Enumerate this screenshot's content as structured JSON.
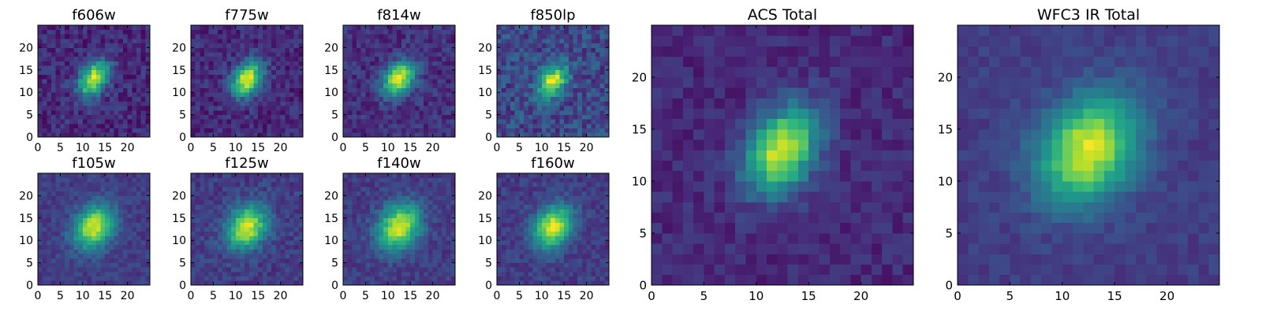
{
  "chart_data": [
    {
      "type": "heatmap",
      "title": "f606w",
      "grid": [
        25,
        25
      ],
      "xlim": [
        0,
        25
      ],
      "ylim": [
        0,
        25
      ],
      "xticks": [
        0,
        5,
        10,
        15,
        20
      ],
      "yticks": [
        0,
        5,
        10,
        15,
        20
      ],
      "source": {
        "center": [
          12,
          12.5
        ],
        "sigma_major": 3.0,
        "sigma_minor": 2.0,
        "angle_deg": 55,
        "peak": 1.0,
        "noise": 0.3,
        "background": 0.12
      }
    },
    {
      "type": "heatmap",
      "title": "f775w",
      "grid": [
        25,
        25
      ],
      "xlim": [
        0,
        25
      ],
      "ylim": [
        0,
        25
      ],
      "xticks": [
        0,
        5,
        10,
        15,
        20
      ],
      "yticks": [
        0,
        5,
        10,
        15,
        20
      ],
      "source": {
        "center": [
          12,
          12.5
        ],
        "sigma_major": 3.0,
        "sigma_minor": 2.1,
        "angle_deg": 55,
        "peak": 1.0,
        "noise": 0.28,
        "background": 0.12
      }
    },
    {
      "type": "heatmap",
      "title": "f814w",
      "grid": [
        25,
        25
      ],
      "xlim": [
        0,
        25
      ],
      "ylim": [
        0,
        25
      ],
      "xticks": [
        0,
        5,
        10,
        15,
        20
      ],
      "yticks": [
        0,
        5,
        10,
        15,
        20
      ],
      "source": {
        "center": [
          12,
          12.5
        ],
        "sigma_major": 3.0,
        "sigma_minor": 2.1,
        "angle_deg": 55,
        "peak": 1.0,
        "noise": 0.28,
        "background": 0.14
      }
    },
    {
      "type": "heatmap",
      "title": "f850lp",
      "grid": [
        25,
        25
      ],
      "xlim": [
        0,
        25
      ],
      "ylim": [
        0,
        25
      ],
      "xticks": [
        0,
        5,
        10,
        15,
        20
      ],
      "yticks": [
        0,
        5,
        10,
        15,
        20
      ],
      "source": {
        "center": [
          12,
          12
        ],
        "sigma_major": 2.8,
        "sigma_minor": 1.9,
        "angle_deg": 55,
        "peak": 1.0,
        "noise": 0.38,
        "background": 0.22
      }
    },
    {
      "type": "heatmap",
      "title": "f105w",
      "grid": [
        25,
        25
      ],
      "xlim": [
        0,
        25
      ],
      "ylim": [
        0,
        25
      ],
      "xticks": [
        0,
        5,
        10,
        15,
        20
      ],
      "yticks": [
        0,
        5,
        10,
        15,
        20
      ],
      "source": {
        "center": [
          12,
          12.5
        ],
        "sigma_major": 3.6,
        "sigma_minor": 2.8,
        "angle_deg": 55,
        "peak": 1.0,
        "noise": 0.2,
        "background": 0.18
      }
    },
    {
      "type": "heatmap",
      "title": "f125w",
      "grid": [
        25,
        25
      ],
      "xlim": [
        0,
        25
      ],
      "ylim": [
        0,
        25
      ],
      "xticks": [
        0,
        5,
        10,
        15,
        20
      ],
      "yticks": [
        0,
        5,
        10,
        15,
        20
      ],
      "source": {
        "center": [
          12,
          12.5
        ],
        "sigma_major": 3.6,
        "sigma_minor": 2.8,
        "angle_deg": 55,
        "peak": 1.0,
        "noise": 0.24,
        "background": 0.18
      }
    },
    {
      "type": "heatmap",
      "title": "f140w",
      "grid": [
        25,
        25
      ],
      "xlim": [
        0,
        25
      ],
      "ylim": [
        0,
        25
      ],
      "xticks": [
        0,
        5,
        10,
        15,
        20
      ],
      "yticks": [
        0,
        5,
        10,
        15,
        20
      ],
      "source": {
        "center": [
          12,
          12.5
        ],
        "sigma_major": 3.8,
        "sigma_minor": 3.0,
        "angle_deg": 55,
        "peak": 1.0,
        "noise": 0.22,
        "background": 0.18
      }
    },
    {
      "type": "heatmap",
      "title": "f160w",
      "grid": [
        25,
        25
      ],
      "xlim": [
        0,
        25
      ],
      "ylim": [
        0,
        25
      ],
      "xticks": [
        0,
        5,
        10,
        15,
        20
      ],
      "yticks": [
        0,
        5,
        10,
        15,
        20
      ],
      "source": {
        "center": [
          12,
          12.5
        ],
        "sigma_major": 3.6,
        "sigma_minor": 2.7,
        "angle_deg": 55,
        "peak": 1.0,
        "noise": 0.22,
        "background": 0.18
      }
    },
    {
      "type": "heatmap",
      "title": "ACS Total",
      "grid": [
        25,
        25
      ],
      "xlim": [
        0,
        25
      ],
      "ylim": [
        0,
        25
      ],
      "xticks": [
        0,
        5,
        10,
        15,
        20
      ],
      "yticks": [
        0,
        5,
        10,
        15,
        20
      ],
      "source": {
        "center": [
          12,
          12.5
        ],
        "sigma_major": 3.0,
        "sigma_minor": 2.1,
        "angle_deg": 60,
        "peak": 1.0,
        "noise": 0.2,
        "background": 0.12
      }
    },
    {
      "type": "heatmap",
      "title": "WFC3 IR Total",
      "grid": [
        25,
        25
      ],
      "xlim": [
        0,
        25
      ],
      "ylim": [
        0,
        25
      ],
      "xticks": [
        0,
        5,
        10,
        15,
        20
      ],
      "yticks": [
        0,
        5,
        10,
        15,
        20
      ],
      "source": {
        "center": [
          12,
          12.5
        ],
        "sigma_major": 3.8,
        "sigma_minor": 3.0,
        "angle_deg": 55,
        "peak": 1.0,
        "noise": 0.14,
        "background": 0.18
      }
    }
  ],
  "colormap": [
    "#440154",
    "#482878",
    "#3e4989",
    "#31688e",
    "#26828e",
    "#1f9e89",
    "#35b779",
    "#6ece58",
    "#b5de2b",
    "#fde725"
  ]
}
